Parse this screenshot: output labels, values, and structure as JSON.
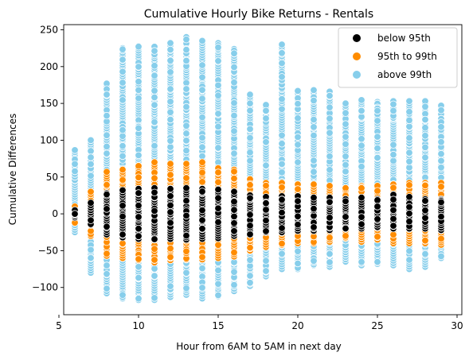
{
  "chart_data": {
    "type": "scatter",
    "title": "Cumulative Hourly Bike Returns - Rentals",
    "xlabel": "Hour from 6AM to 5AM in next day",
    "ylabel": "Cumulative Differences",
    "xlim": [
      5.3,
      30.3
    ],
    "ylim": [
      -137,
      257
    ],
    "x_ticks": [
      5,
      10,
      15,
      20,
      25,
      30
    ],
    "y_ticks": [
      -100,
      -50,
      0,
      50,
      100,
      150,
      200,
      250
    ],
    "grid": false,
    "legend_position": "top-right",
    "marker": "circle with white edge",
    "series": [
      {
        "name": "below 95th",
        "color": "#000000",
        "points_by_hour": [
          {
            "x": 6,
            "y_min": -5,
            "y_max": 5
          },
          {
            "x": 7,
            "y_min": -15,
            "y_max": 15
          },
          {
            "x": 8,
            "y_min": -28,
            "y_max": 28
          },
          {
            "x": 9,
            "y_min": -32,
            "y_max": 32
          },
          {
            "x": 10,
            "y_min": -34,
            "y_max": 34
          },
          {
            "x": 11,
            "y_min": -35,
            "y_max": 35
          },
          {
            "x": 12,
            "y_min": -34,
            "y_max": 34
          },
          {
            "x": 13,
            "y_min": -35,
            "y_max": 35
          },
          {
            "x": 14,
            "y_min": -34,
            "y_max": 34
          },
          {
            "x": 15,
            "y_min": -33,
            "y_max": 33
          },
          {
            "x": 16,
            "y_min": -30,
            "y_max": 30
          },
          {
            "x": 17,
            "y_min": -28,
            "y_max": 25
          },
          {
            "x": 18,
            "y_min": -25,
            "y_max": 23
          },
          {
            "x": 19,
            "y_min": -25,
            "y_max": 24
          },
          {
            "x": 20,
            "y_min": -23,
            "y_max": 24
          },
          {
            "x": 21,
            "y_min": -23,
            "y_max": 22
          },
          {
            "x": 22,
            "y_min": -22,
            "y_max": 22
          },
          {
            "x": 23,
            "y_min": -20,
            "y_max": 20
          },
          {
            "x": 24,
            "y_min": -20,
            "y_max": 22
          },
          {
            "x": 25,
            "y_min": -18,
            "y_max": 20
          },
          {
            "x": 26,
            "y_min": -20,
            "y_max": 26
          },
          {
            "x": 27,
            "y_min": -20,
            "y_max": 23
          },
          {
            "x": 28,
            "y_min": -20,
            "y_max": 20
          },
          {
            "x": 29,
            "y_min": -22,
            "y_max": 20
          }
        ]
      },
      {
        "name": "95th to 99th",
        "color": "#ff8c00",
        "points_by_hour": [
          {
            "x": 6,
            "y_min": -12,
            "y_max": 10
          },
          {
            "x": 7,
            "y_min": -30,
            "y_max": 30
          },
          {
            "x": 8,
            "y_min": -57,
            "y_max": 57
          },
          {
            "x": 9,
            "y_min": -60,
            "y_max": 60
          },
          {
            "x": 10,
            "y_min": -63,
            "y_max": 65
          },
          {
            "x": 11,
            "y_min": -66,
            "y_max": 70
          },
          {
            "x": 12,
            "y_min": -63,
            "y_max": 68
          },
          {
            "x": 13,
            "y_min": -62,
            "y_max": 68
          },
          {
            "x": 14,
            "y_min": -62,
            "y_max": 70
          },
          {
            "x": 15,
            "y_min": -60,
            "y_max": 62
          },
          {
            "x": 16,
            "y_min": -58,
            "y_max": 60
          },
          {
            "x": 17,
            "y_min": -50,
            "y_max": 47
          },
          {
            "x": 18,
            "y_min": -45,
            "y_max": 42
          },
          {
            "x": 19,
            "y_min": -42,
            "y_max": 42
          },
          {
            "x": 20,
            "y_min": -40,
            "y_max": 40
          },
          {
            "x": 21,
            "y_min": -40,
            "y_max": 40
          },
          {
            "x": 22,
            "y_min": -38,
            "y_max": 38
          },
          {
            "x": 23,
            "y_min": -33,
            "y_max": 35
          },
          {
            "x": 24,
            "y_min": -38,
            "y_max": 38
          },
          {
            "x": 25,
            "y_min": -35,
            "y_max": 38
          },
          {
            "x": 26,
            "y_min": -40,
            "y_max": 40
          },
          {
            "x": 27,
            "y_min": -40,
            "y_max": 42
          },
          {
            "x": 28,
            "y_min": -40,
            "y_max": 42
          },
          {
            "x": 29,
            "y_min": -42,
            "y_max": 42
          }
        ]
      },
      {
        "name": "above 99th",
        "color": "#87ceeb",
        "points_by_hour": [
          {
            "x": 6,
            "y_min": -25,
            "y_max": 87
          },
          {
            "x": 7,
            "y_min": -80,
            "y_max": 100
          },
          {
            "x": 8,
            "y_min": -108,
            "y_max": 177
          },
          {
            "x": 9,
            "y_min": -115,
            "y_max": 225
          },
          {
            "x": 10,
            "y_min": -117,
            "y_max": 228
          },
          {
            "x": 11,
            "y_min": -117,
            "y_max": 227
          },
          {
            "x": 12,
            "y_min": -113,
            "y_max": 232
          },
          {
            "x": 13,
            "y_min": -110,
            "y_max": 240
          },
          {
            "x": 14,
            "y_min": -115,
            "y_max": 235
          },
          {
            "x": 15,
            "y_min": -112,
            "y_max": 232
          },
          {
            "x": 16,
            "y_min": -105,
            "y_max": 224
          },
          {
            "x": 17,
            "y_min": -98,
            "y_max": 162
          },
          {
            "x": 18,
            "y_min": -85,
            "y_max": 148
          },
          {
            "x": 19,
            "y_min": -75,
            "y_max": 230
          },
          {
            "x": 20,
            "y_min": -75,
            "y_max": 167
          },
          {
            "x": 21,
            "y_min": -70,
            "y_max": 168
          },
          {
            "x": 22,
            "y_min": -72,
            "y_max": 166
          },
          {
            "x": 23,
            "y_min": -65,
            "y_max": 150
          },
          {
            "x": 24,
            "y_min": -70,
            "y_max": 155
          },
          {
            "x": 25,
            "y_min": -68,
            "y_max": 152
          },
          {
            "x": 26,
            "y_min": -70,
            "y_max": 153
          },
          {
            "x": 27,
            "y_min": -75,
            "y_max": 153
          },
          {
            "x": 28,
            "y_min": -72,
            "y_max": 153
          },
          {
            "x": 29,
            "y_min": -60,
            "y_max": 147
          }
        ]
      }
    ]
  }
}
